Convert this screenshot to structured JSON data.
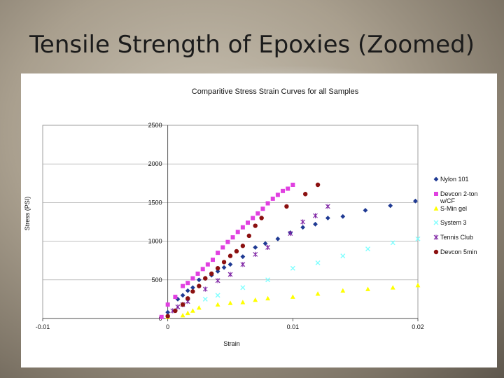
{
  "slide": {
    "title": "Tensile Strength of Epoxies (Zoomed)"
  },
  "chart_data": {
    "type": "scatter",
    "title": "Comparitive Stress Strain Curves for all Samples",
    "xlabel": "Strain",
    "ylabel": "Stress (PSI)",
    "xlim": [
      -0.01,
      0.02
    ],
    "ylim": [
      0,
      2500
    ],
    "xticks": [
      "-0.01",
      "0",
      "0.01",
      "0.02"
    ],
    "yticks": [
      "0",
      "500",
      "1000",
      "1500",
      "2000",
      "2500"
    ],
    "grid": true,
    "legend": "right",
    "series": [
      {
        "name": "Nylon 101",
        "marker": "diamond",
        "color": "#1f3a93",
        "points": [
          [
            0.0,
            80
          ],
          [
            0.0008,
            250
          ],
          [
            0.0012,
            300
          ],
          [
            0.0016,
            360
          ],
          [
            0.002,
            400
          ],
          [
            0.0025,
            500
          ],
          [
            0.003,
            520
          ],
          [
            0.0035,
            560
          ],
          [
            0.004,
            610
          ],
          [
            0.0045,
            660
          ],
          [
            0.005,
            700
          ],
          [
            0.006,
            800
          ],
          [
            0.007,
            920
          ],
          [
            0.0078,
            970
          ],
          [
            0.0088,
            1030
          ],
          [
            0.0098,
            1110
          ],
          [
            0.0108,
            1180
          ],
          [
            0.0118,
            1220
          ],
          [
            0.0128,
            1300
          ],
          [
            0.014,
            1320
          ],
          [
            0.0158,
            1400
          ],
          [
            0.0178,
            1460
          ],
          [
            0.0198,
            1520
          ]
        ]
      },
      {
        "name": "Devcon 2-ton w/CF",
        "marker": "square",
        "color": "#e040e0",
        "points": [
          [
            -0.0005,
            20
          ],
          [
            0.0,
            180
          ],
          [
            0.0006,
            280
          ],
          [
            0.0012,
            420
          ],
          [
            0.0016,
            460
          ],
          [
            0.002,
            520
          ],
          [
            0.0024,
            580
          ],
          [
            0.0028,
            640
          ],
          [
            0.0032,
            700
          ],
          [
            0.0036,
            760
          ],
          [
            0.004,
            850
          ],
          [
            0.0044,
            920
          ],
          [
            0.0048,
            990
          ],
          [
            0.0052,
            1050
          ],
          [
            0.0056,
            1120
          ],
          [
            0.006,
            1180
          ],
          [
            0.0064,
            1240
          ],
          [
            0.0068,
            1300
          ],
          [
            0.0072,
            1360
          ],
          [
            0.0076,
            1420
          ],
          [
            0.008,
            1490
          ],
          [
            0.0084,
            1550
          ],
          [
            0.0088,
            1600
          ],
          [
            0.0092,
            1650
          ],
          [
            0.0096,
            1680
          ],
          [
            0.01,
            1730
          ]
        ]
      },
      {
        "name": "S-Min gel",
        "marker": "triangle",
        "color": "#ffff00",
        "points": [
          [
            0.0,
            20
          ],
          [
            0.0012,
            40
          ],
          [
            0.0016,
            70
          ],
          [
            0.002,
            100
          ],
          [
            0.0025,
            140
          ],
          [
            0.004,
            180
          ],
          [
            0.005,
            200
          ],
          [
            0.006,
            210
          ],
          [
            0.007,
            240
          ],
          [
            0.008,
            260
          ],
          [
            0.01,
            280
          ],
          [
            0.012,
            320
          ],
          [
            0.014,
            360
          ],
          [
            0.016,
            380
          ],
          [
            0.018,
            400
          ],
          [
            0.02,
            430
          ]
        ]
      },
      {
        "name": "System 3",
        "marker": "x",
        "color": "#80ffff",
        "points": [
          [
            0.003,
            250
          ],
          [
            0.004,
            300
          ],
          [
            0.006,
            400
          ],
          [
            0.008,
            500
          ],
          [
            0.01,
            650
          ],
          [
            0.012,
            720
          ],
          [
            0.014,
            810
          ],
          [
            0.016,
            900
          ],
          [
            0.018,
            980
          ],
          [
            0.02,
            1030
          ]
        ]
      },
      {
        "name": "Tennis Club",
        "marker": "star",
        "color": "#7b1fa2",
        "points": [
          [
            0.0004,
            100
          ],
          [
            0.0008,
            150
          ],
          [
            0.0012,
            180
          ],
          [
            0.0016,
            220
          ],
          [
            0.003,
            380
          ],
          [
            0.004,
            490
          ],
          [
            0.005,
            570
          ],
          [
            0.006,
            700
          ],
          [
            0.007,
            830
          ],
          [
            0.008,
            920
          ],
          [
            0.0098,
            1100
          ],
          [
            0.0108,
            1250
          ],
          [
            0.0118,
            1330
          ],
          [
            0.0128,
            1450
          ]
        ]
      },
      {
        "name": "Devcon 5min",
        "marker": "circle",
        "color": "#8b1010",
        "points": [
          [
            0.0,
            30
          ],
          [
            0.0006,
            100
          ],
          [
            0.0012,
            180
          ],
          [
            0.0016,
            260
          ],
          [
            0.002,
            350
          ],
          [
            0.0025,
            420
          ],
          [
            0.003,
            520
          ],
          [
            0.0035,
            580
          ],
          [
            0.004,
            650
          ],
          [
            0.0045,
            730
          ],
          [
            0.005,
            810
          ],
          [
            0.0055,
            870
          ],
          [
            0.006,
            940
          ],
          [
            0.0065,
            1070
          ],
          [
            0.007,
            1200
          ],
          [
            0.0075,
            1300
          ],
          [
            0.0095,
            1450
          ],
          [
            0.011,
            1610
          ],
          [
            0.012,
            1730
          ]
        ]
      }
    ]
  }
}
